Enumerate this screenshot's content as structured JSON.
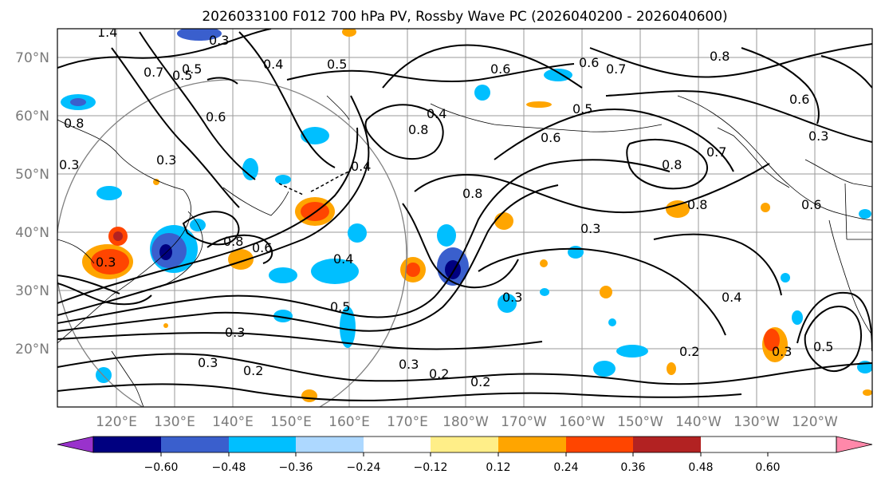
{
  "figure": {
    "title": "2026033100 F012 700 hPa PV, Rossby Wave PC (2026040200 - 2026040600)"
  },
  "map": {
    "lat_labels": [
      "70°N",
      "60°N",
      "50°N",
      "40°N",
      "30°N",
      "20°N"
    ],
    "lon_labels": [
      "120°E",
      "130°E",
      "140°E",
      "150°E",
      "160°E",
      "170°E",
      "180°W",
      "170°W",
      "160°W",
      "150°W",
      "140°W",
      "130°W",
      "120°W"
    ],
    "axis_label_color": "#7a7a7a",
    "contour_labels": [
      "1.4",
      "0.3",
      "0.5",
      "0.4",
      "0.6",
      "0.7",
      "0.8",
      "0.5",
      "0.4",
      "0.8",
      "0.6",
      "0.5",
      "0.6",
      "0.3",
      "0.3",
      "0.8",
      "0.3",
      "0.4",
      "0.4",
      "0.5",
      "0.8",
      "0.6",
      "0.3",
      "0.8",
      "0.7",
      "0.7",
      "0.6",
      "0.6",
      "0.8",
      "0.3",
      "0.8",
      "0.6",
      "0.3",
      "0.3",
      "0.5",
      "0.2",
      "0.2",
      "0.3",
      "0.2",
      "0.3",
      "0.4",
      "0.2",
      "0.3",
      "0.5"
    ]
  },
  "colorbar": {
    "colors": [
      "#9932cc",
      "#000080",
      "#3a5fcd",
      "#00bfff",
      "#add8ff",
      "#ffffff",
      "#ffee88",
      "#ffa500",
      "#ff4500",
      "#b22222",
      "#ff88aa"
    ],
    "tick_labels": [
      "−0.60",
      "−0.48",
      "−0.36",
      "−0.24",
      "−0.12",
      "0.12",
      "0.24",
      "0.36",
      "0.48",
      "0.60"
    ]
  }
}
